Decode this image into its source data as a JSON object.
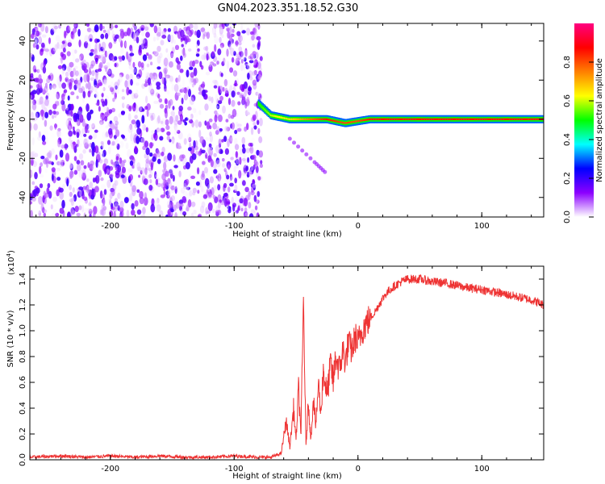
{
  "title": "GN04.2023.351.18.52.G30",
  "chart_data": [
    {
      "type": "heatmap",
      "xlabel": "Height of straight line (km)",
      "ylabel": "Frequency (Hz)",
      "xlim": [
        -265,
        150
      ],
      "ylim": [
        -50,
        49
      ],
      "x_ticks": [
        -200,
        -100,
        0,
        100
      ],
      "y_ticks": [
        -40,
        -20,
        0,
        20,
        40
      ],
      "colorbar": {
        "label": "Normalized spectral amplitude",
        "range": [
          0,
          1
        ],
        "ticks": [
          "0.0",
          "0.2",
          "0.4",
          "0.6",
          "0.8"
        ],
        "colors": [
          "#ffffff",
          "#8c00ff",
          "#0000ff",
          "#00ffff",
          "#00ff00",
          "#ffff00",
          "#ff8000",
          "#ff0000",
          "#ff0080"
        ]
      },
      "noise_region_x": [
        -265,
        -78
      ],
      "signal_track": [
        {
          "x": -80,
          "freq": 8,
          "amp": 0.5
        },
        {
          "x": -70,
          "freq": 2,
          "amp": 0.6
        },
        {
          "x": -55,
          "freq": 0,
          "amp": 0.65
        },
        {
          "x": -40,
          "freq": 0,
          "amp": 0.75
        },
        {
          "x": -25,
          "freq": 0,
          "amp": 0.85
        },
        {
          "x": -10,
          "freq": -2,
          "amp": 0.8
        },
        {
          "x": 0,
          "freq": -1,
          "amp": 0.8
        },
        {
          "x": 10,
          "freq": 0,
          "amp": 0.85
        },
        {
          "x": 50,
          "freq": 0,
          "amp": 0.85
        },
        {
          "x": 100,
          "freq": 0,
          "amp": 0.85
        },
        {
          "x": 150,
          "freq": 0,
          "amp": 0.85
        }
      ],
      "secondary_track": [
        {
          "x": -55,
          "freq": -10
        },
        {
          "x": -35,
          "freq": -22
        },
        {
          "x": -25,
          "freq": -28
        }
      ]
    },
    {
      "type": "line",
      "xlabel": "Height of straight line (km)",
      "ylabel": "SNR (10 * v/v)",
      "y_multiplier": "(x10",
      "y_multiplier_exp": "4",
      "y_multiplier_close": ")",
      "xlim": [
        -265,
        150
      ],
      "ylim": [
        0,
        1.5
      ],
      "x_ticks": [
        -200,
        -100,
        0,
        100
      ],
      "y_ticks": [
        "0.0",
        "0.2",
        "0.4",
        "0.6",
        "0.8",
        "1.0",
        "1.2",
        "1.4"
      ],
      "color": "#ee3333",
      "series": [
        {
          "x": [
            -265,
            -240,
            -220,
            -200,
            -180,
            -160,
            -140,
            -120,
            -100,
            -80,
            -70,
            -62,
            -58,
            -55,
            -52,
            -50,
            -48,
            -46,
            -44,
            -42,
            -40,
            -38,
            -36,
            -34,
            -32,
            -30,
            -28,
            -25,
            -22,
            -20,
            -18,
            -15,
            -12,
            -10,
            -8,
            -5,
            -2,
            0,
            3,
            6,
            10,
            14,
            18,
            22,
            26,
            30,
            35,
            40,
            50,
            60,
            70,
            80,
            90,
            100,
            110,
            120,
            130,
            140,
            150
          ],
          "values": [
            0.02,
            0.03,
            0.02,
            0.03,
            0.02,
            0.03,
            0.02,
            0.02,
            0.03,
            0.02,
            0.02,
            0.05,
            0.3,
            0.1,
            0.4,
            0.15,
            0.55,
            0.2,
            1.25,
            0.1,
            0.45,
            0.15,
            0.5,
            0.25,
            0.6,
            0.35,
            0.7,
            0.5,
            0.75,
            0.6,
            0.8,
            0.7,
            0.85,
            0.75,
            0.9,
            0.85,
            0.95,
            0.9,
            1.0,
            1.05,
            1.1,
            1.15,
            1.22,
            1.28,
            1.32,
            1.35,
            1.38,
            1.4,
            1.4,
            1.38,
            1.37,
            1.35,
            1.33,
            1.32,
            1.3,
            1.28,
            1.26,
            1.24,
            1.2
          ]
        }
      ]
    }
  ]
}
